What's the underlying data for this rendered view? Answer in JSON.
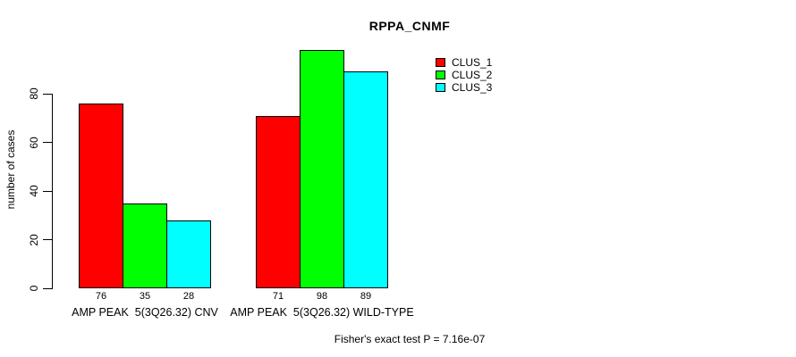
{
  "chart_data": {
    "type": "bar",
    "title": "RPPA_CNMF",
    "xlabel": "",
    "ylabel": "number of cases",
    "ylim": [
      0,
      80
    ],
    "yticks": [
      0,
      20,
      40,
      60,
      80
    ],
    "grid": false,
    "legend_position": "top-right",
    "bar_value_labels": true,
    "categories": [
      "AMP PEAK  5(3Q26.32) CNV",
      "AMP PEAK  5(3Q26.32) WILD-TYPE"
    ],
    "series": [
      {
        "name": "CLUS_1",
        "color": "#FF0000",
        "values": [
          76,
          71
        ]
      },
      {
        "name": "CLUS_2",
        "color": "#00FF00",
        "values": [
          35,
          98
        ]
      },
      {
        "name": "CLUS_3",
        "color": "#00FFFF",
        "values": [
          28,
          89
        ]
      }
    ],
    "annotation": "Fisher's exact test P = 7.16e-07"
  }
}
